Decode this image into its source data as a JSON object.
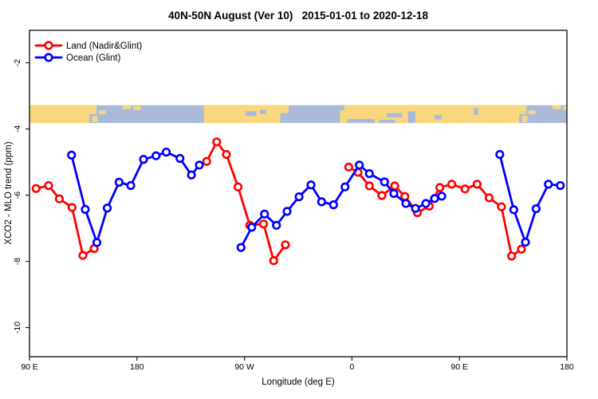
{
  "chart_data": {
    "type": "line",
    "title": "40N-50N August (Ver 10)   2015-01-01 to 2020-12-18",
    "xlabel": "Longitude (deg E)",
    "ylabel": "XCO2 - MLO trend (ppm)",
    "xlim": [
      90,
      540
    ],
    "ylim": [
      -10.88,
      -1.02
    ],
    "grid": false,
    "x_ticks": [
      {
        "deg": 90,
        "label": "90 E"
      },
      {
        "deg": 180,
        "label": "180"
      },
      {
        "deg": 270,
        "label": "90 W"
      },
      {
        "deg": 360,
        "label": "0"
      },
      {
        "deg": 450,
        "label": "90 E"
      },
      {
        "deg": 540,
        "label": "180"
      }
    ],
    "y_ticks": [
      {
        "value": -2,
        "label": "-2"
      },
      {
        "value": -4,
        "label": "-4"
      },
      {
        "value": -6,
        "label": "-6"
      },
      {
        "value": -8,
        "label": "-8"
      },
      {
        "value": -10,
        "label": "-10"
      }
    ],
    "legend": {
      "position": "top-left",
      "items": [
        {
          "label": "Land (Nadir&Glint)",
          "color": "#ff0000"
        },
        {
          "label": "Ocean (Glint)",
          "color": "#0000ff"
        }
      ]
    },
    "map_band": {
      "comment": "world-map strip of the 40N-50N latitude zone drawn across the plot",
      "value_top": -3.28,
      "value_bottom": -3.82,
      "land_color": "#f8d77d",
      "ocean_color": "#a9bad9",
      "rects": [
        {
          "d0": 90,
          "d1": 140,
          "f0": 0,
          "f1": 1,
          "t": "land"
        },
        {
          "d0": 140,
          "d1": 146,
          "f0": 0,
          "f1": 0.5,
          "t": "land"
        },
        {
          "d0": 142.5,
          "d1": 147,
          "f0": 0.6,
          "f1": 0.95,
          "t": "land"
        },
        {
          "d0": 148,
          "d1": 154,
          "f0": 0.3,
          "f1": 0.5,
          "t": "land"
        },
        {
          "d0": 168,
          "d1": 175,
          "f0": 0,
          "f1": 0.22,
          "t": "land"
        },
        {
          "d0": 177,
          "d1": 183,
          "f0": 0.05,
          "f1": 0.28,
          "t": "land"
        },
        {
          "d0": 236,
          "d1": 300,
          "f0": 0,
          "f1": 1,
          "t": "land"
        },
        {
          "d0": 271,
          "d1": 280,
          "f0": 0.35,
          "f1": 0.6,
          "t": "water"
        },
        {
          "d0": 283,
          "d1": 288,
          "f0": 0.25,
          "f1": 0.5,
          "t": "water"
        },
        {
          "d0": 300,
          "d1": 307,
          "f0": 0,
          "f1": 0.45,
          "t": "land"
        },
        {
          "d0": 350,
          "d1": 500,
          "f0": 0,
          "f1": 1,
          "t": "land"
        },
        {
          "d0": 350,
          "d1": 353.5,
          "f0": 0,
          "f1": 0.3,
          "t": "water"
        },
        {
          "d0": 356,
          "d1": 379,
          "f0": 0.78,
          "f1": 1,
          "t": "water"
        },
        {
          "d0": 383,
          "d1": 396,
          "f0": 0.82,
          "f1": 1,
          "t": "water"
        },
        {
          "d0": 389,
          "d1": 402,
          "f0": 0.45,
          "f1": 0.68,
          "t": "water"
        },
        {
          "d0": 407,
          "d1": 413,
          "f0": 0.35,
          "f1": 1,
          "t": "water"
        },
        {
          "d0": 429,
          "d1": 435,
          "f0": 0.55,
          "f1": 0.8,
          "t": "water"
        },
        {
          "d0": 462,
          "d1": 465.5,
          "f0": 0.15,
          "f1": 0.55,
          "t": "water"
        },
        {
          "d0": 500,
          "d1": 506,
          "f0": 0,
          "f1": 0.5,
          "t": "land"
        },
        {
          "d0": 502.5,
          "d1": 507,
          "f0": 0.6,
          "f1": 0.95,
          "t": "land"
        },
        {
          "d0": 508,
          "d1": 514,
          "f0": 0.3,
          "f1": 0.5,
          "t": "land"
        },
        {
          "d0": 528,
          "d1": 535,
          "f0": 0,
          "f1": 0.22,
          "t": "land"
        },
        {
          "d0": 537,
          "d1": 540,
          "f0": 0.05,
          "f1": 0.28,
          "t": "land"
        }
      ]
    },
    "series": [
      {
        "name": "Land (Nadir&Glint)",
        "color": "#ff0000",
        "segments": [
          [
            [
              95.5,
              -5.8
            ],
            [
              106,
              -5.71
            ],
            [
              115,
              -6.11
            ],
            [
              125.6,
              -6.37
            ],
            [
              134.7,
              -7.82
            ],
            [
              144.1,
              -7.61
            ]
          ],
          [
            [
              238.4,
              -4.98
            ],
            [
              246.7,
              -4.39
            ],
            [
              254.9,
              -4.77
            ],
            [
              264.6,
              -5.75
            ],
            [
              274.5,
              -6.91
            ],
            [
              286,
              -6.87
            ],
            [
              294.5,
              -7.98
            ],
            [
              304.3,
              -7.5
            ]
          ],
          [
            [
              357.3,
              -5.15
            ],
            [
              365.1,
              -5.31
            ],
            [
              374.6,
              -5.72
            ],
            [
              385.1,
              -6.01
            ],
            [
              395.8,
              -5.72
            ],
            [
              404.3,
              -6.04
            ],
            [
              414.8,
              -6.53
            ],
            [
              424.7,
              -6.33
            ],
            [
              433.6,
              -5.77
            ],
            [
              443.6,
              -5.67
            ],
            [
              454.7,
              -5.81
            ],
            [
              464.8,
              -5.67
            ],
            [
              474.8,
              -6.08
            ],
            [
              485.2,
              -6.35
            ],
            [
              493.7,
              -7.84
            ],
            [
              501.9,
              -7.63
            ]
          ]
        ]
      },
      {
        "name": "Ocean (Glint)",
        "color": "#0000ff",
        "segments": [
          [
            [
              125.2,
              -4.79
            ],
            [
              136.7,
              -6.43
            ],
            [
              146.4,
              -7.43
            ],
            [
              155.1,
              -6.39
            ],
            [
              165,
              -5.61
            ],
            [
              174.8,
              -5.71
            ],
            [
              185.5,
              -4.92
            ],
            [
              196,
              -4.81
            ],
            [
              204.5,
              -4.7
            ],
            [
              216,
              -4.89
            ],
            [
              225.6,
              -5.39
            ],
            [
              232.2,
              -5.09
            ]
          ],
          [
            [
              267.1,
              -7.58
            ],
            [
              276.1,
              -6.97
            ],
            [
              286.8,
              -6.57
            ],
            [
              296.8,
              -6.91
            ],
            [
              305.7,
              -6.49
            ],
            [
              315.7,
              -6.05
            ],
            [
              325.7,
              -5.69
            ],
            [
              334.6,
              -6.2
            ],
            [
              344.6,
              -6.29
            ],
            [
              354.2,
              -5.75
            ],
            [
              366.2,
              -5.09
            ],
            [
              374.6,
              -5.35
            ],
            [
              387.3,
              -5.6
            ],
            [
              395.1,
              -5.95
            ],
            [
              405.2,
              -6.25
            ],
            [
              413.2,
              -6.4
            ],
            [
              421.9,
              -6.25
            ],
            [
              429.2,
              -6.1
            ],
            [
              435.2,
              -6.03
            ]
          ],
          [
            [
              483.8,
              -4.77
            ],
            [
              495.5,
              -6.44
            ],
            [
              505.3,
              -7.42
            ],
            [
              514.2,
              -6.41
            ],
            [
              524.5,
              -5.67
            ],
            [
              534.5,
              -5.71
            ]
          ]
        ]
      }
    ],
    "style": {
      "axis_color": "#1a1a1a",
      "text_color": "#000000",
      "line_width": 2.8,
      "marker_radius": 4.3,
      "marker_stroke": 2.6,
      "marker_fill": "#ffffff"
    }
  }
}
